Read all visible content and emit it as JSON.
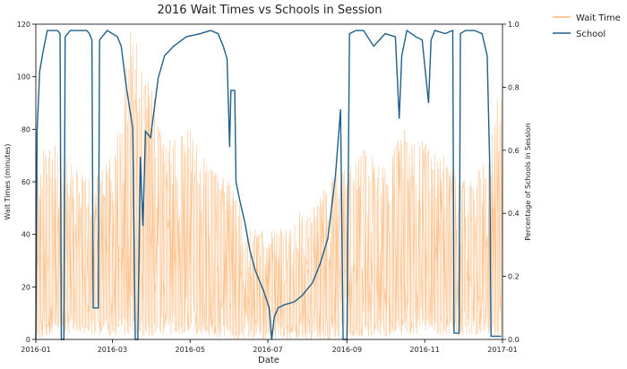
{
  "chart_data": {
    "type": "line",
    "title": "2016 Wait Times vs Schools in Session",
    "xlabel": "Date",
    "ylabel_left": "Wait Times (minutes)",
    "ylabel_right": "Percentage of Schools in Session",
    "xlim": [
      "2016-01-01",
      "2017-01-01"
    ],
    "ylim_left": [
      0,
      120
    ],
    "ylim_right": [
      0,
      1.0
    ],
    "x_ticks": [
      "2016-01",
      "2016-03",
      "2016-05",
      "2016-07",
      "2016-09",
      "2016-11",
      "2017-01"
    ],
    "y_left_ticks": [
      0,
      20,
      40,
      60,
      80,
      100,
      120
    ],
    "y_right_ticks": [
      "0.0",
      "0.2",
      "0.4",
      "0.6",
      "0.8",
      "1.0"
    ],
    "legend": {
      "placement": "outside-top-right",
      "entries": [
        "Wait Time",
        "School"
      ]
    },
    "series": [
      {
        "name": "Wait Time",
        "axis": "left",
        "color": "#fdb97c",
        "style": "dense noisy line, values fluctuating mostly between 0 and 70 minutes, peaks up to 120",
        "x": [
          "2016-01-01",
          "2016-01-16",
          "2016-02-01",
          "2016-02-16",
          "2016-03-01",
          "2016-03-16",
          "2016-04-01",
          "2016-04-16",
          "2016-05-01",
          "2016-05-16",
          "2016-06-01",
          "2016-06-16",
          "2016-07-01",
          "2016-07-16",
          "2016-08-01",
          "2016-08-16",
          "2016-09-01",
          "2016-09-16",
          "2016-10-01",
          "2016-10-16",
          "2016-11-01",
          "2016-11-16",
          "2016-12-01",
          "2016-12-16",
          "2017-01-01"
        ],
        "max_values": [
          70,
          75,
          65,
          60,
          70,
          120,
          95,
          75,
          80,
          65,
          60,
          45,
          40,
          45,
          50,
          60,
          65,
          75,
          65,
          80,
          75,
          70,
          60,
          65,
          100
        ],
        "min_values": [
          0,
          2,
          2,
          2,
          1,
          2,
          1,
          2,
          2,
          1,
          0,
          0,
          0,
          0,
          0,
          0,
          1,
          1,
          1,
          2,
          2,
          1,
          1,
          2,
          0
        ]
      },
      {
        "name": "School",
        "axis": "right",
        "color": "#1f5f8b",
        "points": [
          [
            "2016-01-01",
            0.0
          ],
          [
            "2016-01-02",
            0.66
          ],
          [
            "2016-01-04",
            0.85
          ],
          [
            "2016-01-07",
            0.92
          ],
          [
            "2016-01-10",
            0.98
          ],
          [
            "2016-01-18",
            0.98
          ],
          [
            "2016-01-20",
            0.97
          ],
          [
            "2016-01-21",
            0.0
          ],
          [
            "2016-01-23",
            0.0
          ],
          [
            "2016-01-24",
            0.96
          ],
          [
            "2016-01-28",
            0.98
          ],
          [
            "2016-02-10",
            0.98
          ],
          [
            "2016-02-12",
            0.97
          ],
          [
            "2016-02-14",
            0.95
          ],
          [
            "2016-02-15",
            0.1
          ],
          [
            "2016-02-19",
            0.1
          ],
          [
            "2016-02-20",
            0.95
          ],
          [
            "2016-02-26",
            0.98
          ],
          [
            "2016-03-05",
            0.96
          ],
          [
            "2016-03-08",
            0.93
          ],
          [
            "2016-03-12",
            0.8
          ],
          [
            "2016-03-17",
            0.67
          ],
          [
            "2016-03-19",
            0.0
          ],
          [
            "2016-03-21",
            0.0
          ],
          [
            "2016-03-23",
            0.58
          ],
          [
            "2016-03-25",
            0.36
          ],
          [
            "2016-03-27",
            0.66
          ],
          [
            "2016-03-31",
            0.64
          ],
          [
            "2016-04-06",
            0.83
          ],
          [
            "2016-04-11",
            0.9
          ],
          [
            "2016-04-18",
            0.93
          ],
          [
            "2016-04-28",
            0.96
          ],
          [
            "2016-05-09",
            0.97
          ],
          [
            "2016-05-17",
            0.98
          ],
          [
            "2016-05-23",
            0.97
          ],
          [
            "2016-05-27",
            0.93
          ],
          [
            "2016-05-30",
            0.89
          ],
          [
            "2016-06-01",
            0.61
          ],
          [
            "2016-06-02",
            0.79
          ],
          [
            "2016-06-05",
            0.79
          ],
          [
            "2016-06-06",
            0.5
          ],
          [
            "2016-06-09",
            0.44
          ],
          [
            "2016-06-13",
            0.37
          ],
          [
            "2016-06-17",
            0.28
          ],
          [
            "2016-06-21",
            0.22
          ],
          [
            "2016-06-28",
            0.15
          ],
          [
            "2016-07-02",
            0.1
          ],
          [
            "2016-07-04",
            0.0
          ],
          [
            "2016-07-06",
            0.07
          ],
          [
            "2016-07-09",
            0.1
          ],
          [
            "2016-07-14",
            0.11
          ],
          [
            "2016-07-22",
            0.12
          ],
          [
            "2016-07-28",
            0.14
          ],
          [
            "2016-08-05",
            0.18
          ],
          [
            "2016-08-11",
            0.24
          ],
          [
            "2016-08-17",
            0.32
          ],
          [
            "2016-08-23",
            0.52
          ],
          [
            "2016-08-27",
            0.73
          ],
          [
            "2016-08-29",
            0.0
          ],
          [
            "2016-09-01",
            0.0
          ],
          [
            "2016-09-03",
            0.97
          ],
          [
            "2016-09-08",
            0.98
          ],
          [
            "2016-09-14",
            0.98
          ],
          [
            "2016-09-22",
            0.93
          ],
          [
            "2016-10-01",
            0.97
          ],
          [
            "2016-10-09",
            0.96
          ],
          [
            "2016-10-12",
            0.7
          ],
          [
            "2016-10-14",
            0.9
          ],
          [
            "2016-10-18",
            0.98
          ],
          [
            "2016-10-25",
            0.96
          ],
          [
            "2016-10-30",
            0.95
          ],
          [
            "2016-11-04",
            0.75
          ],
          [
            "2016-11-06",
            0.95
          ],
          [
            "2016-11-09",
            0.98
          ],
          [
            "2016-11-17",
            0.97
          ],
          [
            "2016-11-23",
            0.98
          ],
          [
            "2016-11-24",
            0.02
          ],
          [
            "2016-11-28",
            0.02
          ],
          [
            "2016-11-29",
            0.97
          ],
          [
            "2016-12-03",
            0.98
          ],
          [
            "2016-12-10",
            0.98
          ],
          [
            "2016-12-16",
            0.97
          ],
          [
            "2016-12-20",
            0.9
          ],
          [
            "2016-12-22",
            0.55
          ],
          [
            "2016-12-23",
            0.01
          ],
          [
            "2016-12-31",
            0.01
          ]
        ]
      }
    ]
  }
}
